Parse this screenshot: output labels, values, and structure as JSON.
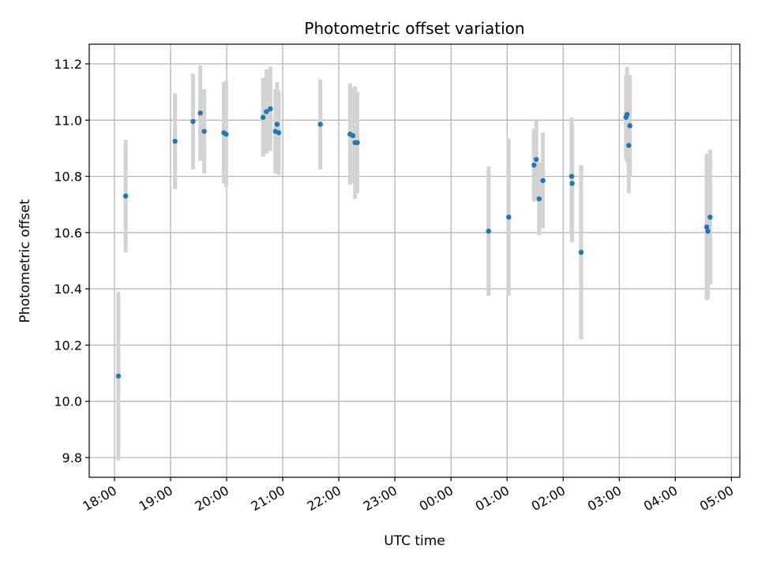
{
  "chart_data": {
    "type": "scatter",
    "title": "Photometric offset variation",
    "xlabel": "UTC time",
    "ylabel": "Photometric offset",
    "x_unit": "hours",
    "xlim": [
      -0.45,
      11.15
    ],
    "ylim": [
      9.73,
      11.27
    ],
    "x_ticks": [
      {
        "value": 0,
        "label": "18:00"
      },
      {
        "value": 1,
        "label": "19:00"
      },
      {
        "value": 2,
        "label": "20:00"
      },
      {
        "value": 3,
        "label": "21:00"
      },
      {
        "value": 4,
        "label": "22:00"
      },
      {
        "value": 5,
        "label": "23:00"
      },
      {
        "value": 6,
        "label": "00:00"
      },
      {
        "value": 7,
        "label": "01:00"
      },
      {
        "value": 8,
        "label": "02:00"
      },
      {
        "value": 9,
        "label": "03:00"
      },
      {
        "value": 10,
        "label": "04:00"
      },
      {
        "value": 11,
        "label": "05:00"
      }
    ],
    "y_ticks": [
      9.8,
      10.0,
      10.2,
      10.4,
      10.6,
      10.8,
      11.0,
      11.2
    ],
    "y_tick_labels": [
      "9.8",
      "10.0",
      "10.2",
      "10.4",
      "10.6",
      "10.8",
      "11.0",
      "11.2"
    ],
    "grid": true,
    "colors": {
      "point": "#1f77b4",
      "errorbar": "#d3d3d3",
      "grid": "#b0b0b0"
    },
    "points": [
      {
        "x": 0.07,
        "y": 10.09,
        "err": 0.3
      },
      {
        "x": 0.2,
        "y": 10.73,
        "err": 0.2
      },
      {
        "x": 1.08,
        "y": 10.925,
        "err": 0.17
      },
      {
        "x": 1.4,
        "y": 10.995,
        "err": 0.17
      },
      {
        "x": 1.53,
        "y": 11.025,
        "err": 0.17
      },
      {
        "x": 1.6,
        "y": 10.96,
        "err": 0.15
      },
      {
        "x": 1.95,
        "y": 10.955,
        "err": 0.18
      },
      {
        "x": 1.99,
        "y": 10.95,
        "err": 0.19
      },
      {
        "x": 2.65,
        "y": 11.01,
        "err": 0.14
      },
      {
        "x": 2.71,
        "y": 11.03,
        "err": 0.15
      },
      {
        "x": 2.78,
        "y": 11.04,
        "err": 0.15
      },
      {
        "x": 2.87,
        "y": 10.96,
        "err": 0.15
      },
      {
        "x": 2.9,
        "y": 10.985,
        "err": 0.15
      },
      {
        "x": 2.93,
        "y": 10.955,
        "err": 0.15
      },
      {
        "x": 3.67,
        "y": 10.985,
        "err": 0.16
      },
      {
        "x": 4.2,
        "y": 10.95,
        "err": 0.18
      },
      {
        "x": 4.25,
        "y": 10.945,
        "err": 0.17
      },
      {
        "x": 4.29,
        "y": 10.92,
        "err": 0.2
      },
      {
        "x": 4.33,
        "y": 10.92,
        "err": 0.18
      },
      {
        "x": 6.67,
        "y": 10.605,
        "err": 0.23
      },
      {
        "x": 7.03,
        "y": 10.655,
        "err": 0.28
      },
      {
        "x": 7.48,
        "y": 10.84,
        "err": 0.13
      },
      {
        "x": 7.52,
        "y": 10.86,
        "err": 0.14
      },
      {
        "x": 7.57,
        "y": 10.72,
        "err": 0.13
      },
      {
        "x": 7.64,
        "y": 10.785,
        "err": 0.17
      },
      {
        "x": 8.15,
        "y": 10.8,
        "err": 0.21
      },
      {
        "x": 8.16,
        "y": 10.775,
        "err": 0.21
      },
      {
        "x": 8.32,
        "y": 10.53,
        "err": 0.31
      },
      {
        "x": 9.12,
        "y": 11.01,
        "err": 0.15
      },
      {
        "x": 9.14,
        "y": 11.02,
        "err": 0.17
      },
      {
        "x": 9.17,
        "y": 10.91,
        "err": 0.17
      },
      {
        "x": 9.19,
        "y": 10.98,
        "err": 0.18
      },
      {
        "x": 10.56,
        "y": 10.62,
        "err": 0.26
      },
      {
        "x": 10.58,
        "y": 10.605,
        "err": 0.24
      },
      {
        "x": 10.62,
        "y": 10.655,
        "err": 0.24
      }
    ]
  }
}
